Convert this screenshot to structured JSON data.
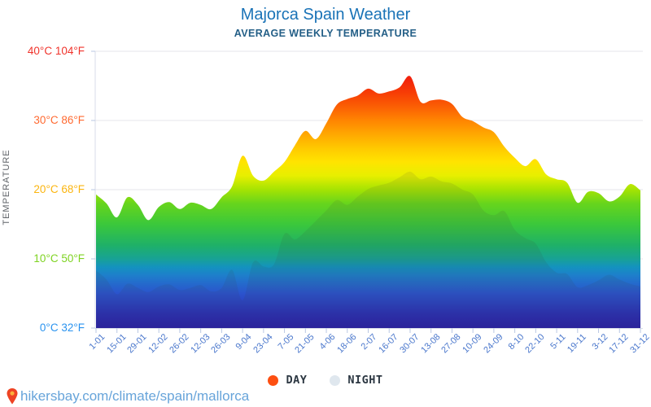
{
  "title": "Majorca Spain Weather",
  "subtitle": "AVERAGE WEEKLY TEMPERATURE",
  "colors": {
    "title": "#1a73b7",
    "subtitle": "#245f87",
    "x_labels": "#4a77cc",
    "gridline": "#e5e5eb",
    "axis_line": "#d9dee9",
    "tick": "#b9c7e3",
    "night_shade": "rgba(60,60,60,0.10)"
  },
  "y_axis": {
    "title": "TEMPERATURE",
    "ticks": [
      {
        "label": "40°C 104°F",
        "c": 40,
        "color": "#f0342c"
      },
      {
        "label": "30°C 86°F",
        "c": 30,
        "color": "#ff6a31"
      },
      {
        "label": "20°C 68°F",
        "c": 20,
        "color": "#fbb50f"
      },
      {
        "label": "10°C 50°F",
        "c": 10,
        "color": "#7ed321"
      },
      {
        "label": "0°C 32°F",
        "c": 0,
        "color": "#2a93ef"
      }
    ]
  },
  "x_axis": {
    "labels": [
      "1-01",
      "15-01",
      "29-01",
      "12-02",
      "26-02",
      "12-03",
      "26-03",
      "9-04",
      "23-04",
      "7-05",
      "21-05",
      "4-06",
      "18-06",
      "2-07",
      "16-07",
      "30-07",
      "13-08",
      "27-08",
      "10-09",
      "24-09",
      "8-10",
      "22-10",
      "5-11",
      "19-11",
      "3-12",
      "17-12",
      "31-12"
    ]
  },
  "legend": [
    {
      "label": "DAY",
      "color": "#fd4f11"
    },
    {
      "label": "NIGHT",
      "color": "#dfe7ee"
    }
  ],
  "footer": {
    "url": "hikersbay.com/climate/spain/mallorca",
    "link_color": "#67a4da",
    "pin_body_color": "#ee4323",
    "pin_center_color": "#fbb03b"
  },
  "chart_data": {
    "type": "area",
    "title": "Majorca Spain Weather",
    "subtitle": "AVERAGE WEEKLY TEMPERATURE",
    "ylabel": "TEMPERATURE",
    "ylim": [
      0,
      40
    ],
    "y_unit": "°C",
    "x_unit": "week (1-01 through 31-12, weekly points, labels every 2 weeks)",
    "x_tick_labels": [
      "1-01",
      "15-01",
      "29-01",
      "12-02",
      "26-02",
      "12-03",
      "26-03",
      "9-04",
      "23-04",
      "7-05",
      "21-05",
      "4-06",
      "18-06",
      "2-07",
      "16-07",
      "30-07",
      "13-08",
      "27-08",
      "10-09",
      "24-09",
      "8-10",
      "22-10",
      "5-11",
      "19-11",
      "3-12",
      "17-12",
      "31-12"
    ],
    "grid": true,
    "legend_position": "bottom",
    "series": [
      {
        "name": "DAY",
        "values": [
          19.3,
          18.0,
          16.0,
          18.9,
          17.8,
          15.6,
          17.5,
          18.2,
          17.2,
          18.1,
          17.8,
          17.2,
          18.9,
          20.5,
          24.9,
          22.0,
          21.3,
          22.6,
          24.0,
          26.4,
          28.5,
          27.3,
          29.6,
          32.3,
          33.1,
          33.6,
          34.6,
          33.9,
          34.2,
          34.8,
          36.4,
          32.7,
          32.9,
          33.0,
          32.4,
          30.5,
          29.9,
          29.0,
          28.3,
          26.2,
          24.6,
          23.4,
          24.4,
          22.2,
          21.5,
          21.0,
          18.1,
          19.7,
          19.5,
          18.3,
          19.0,
          20.8,
          19.9
        ]
      },
      {
        "name": "NIGHT",
        "values": [
          8.3,
          7.0,
          4.9,
          6.4,
          5.8,
          5.2,
          6.0,
          6.3,
          5.5,
          5.8,
          6.2,
          5.3,
          5.8,
          8.4,
          4.0,
          9.5,
          8.9,
          9.2,
          13.6,
          12.8,
          14.0,
          15.5,
          17.0,
          18.5,
          17.8,
          19.0,
          20.1,
          20.6,
          21.0,
          21.8,
          22.6,
          21.5,
          21.9,
          21.2,
          20.9,
          20.0,
          19.3,
          17.0,
          16.3,
          16.9,
          14.2,
          13.0,
          12.2,
          9.5,
          8.0,
          7.8,
          5.9,
          6.2,
          6.9,
          7.7,
          7.0,
          6.4,
          6.0
        ]
      }
    ],
    "gradient_stops": [
      {
        "t": 0,
        "color": "#2a21a6"
      },
      {
        "t": 2,
        "color": "#2b2fb4"
      },
      {
        "t": 5,
        "color": "#2b53cd"
      },
      {
        "t": 7.6,
        "color": "#1e7ecb"
      },
      {
        "t": 8.8,
        "color": "#1492bf"
      },
      {
        "t": 10,
        "color": "#18a295"
      },
      {
        "t": 12,
        "color": "#1fb167"
      },
      {
        "t": 15,
        "color": "#3bc83b"
      },
      {
        "t": 18,
        "color": "#67d51c"
      },
      {
        "t": 20,
        "color": "#a5e303"
      },
      {
        "t": 22,
        "color": "#e7ef00"
      },
      {
        "t": 24,
        "color": "#ffe400"
      },
      {
        "t": 26,
        "color": "#ffc900"
      },
      {
        "t": 28,
        "color": "#ffa801"
      },
      {
        "t": 30,
        "color": "#ff8501"
      },
      {
        "t": 32,
        "color": "#fb5f04"
      },
      {
        "t": 34,
        "color": "#f73d05"
      },
      {
        "t": 36,
        "color": "#f2220c"
      },
      {
        "t": 40,
        "color": "#ee1511"
      }
    ]
  }
}
